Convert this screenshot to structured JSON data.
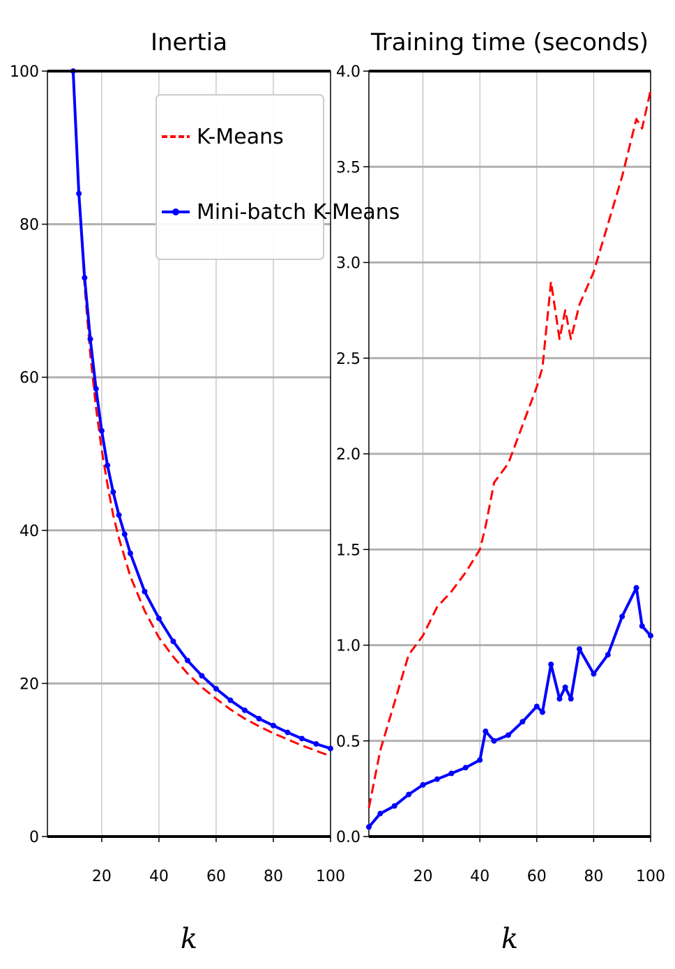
{
  "chart_data": [
    {
      "type": "line",
      "title": "Inertia",
      "xlabel": "k",
      "ylabel": "",
      "xlim": [
        1,
        100
      ],
      "ylim": [
        0,
        100
      ],
      "xticks": [
        20,
        40,
        60,
        80,
        100
      ],
      "yticks": [
        0,
        20,
        40,
        60,
        80,
        100
      ],
      "grid": true,
      "legend": {
        "location": "top-right",
        "entries": [
          "K-Means",
          "Mini-batch K-Means"
        ]
      },
      "x": [
        10,
        12,
        14,
        16,
        18,
        20,
        22,
        24,
        26,
        28,
        30,
        35,
        40,
        45,
        50,
        55,
        60,
        65,
        70,
        75,
        80,
        85,
        90,
        95,
        100
      ],
      "series": [
        {
          "name": "K-Means",
          "color": "#ff0000",
          "style": "dashed",
          "values": [
            100,
            84,
            72,
            63,
            56,
            50.5,
            46,
            42,
            39,
            36.5,
            34,
            29.5,
            26,
            23.5,
            21.3,
            19.5,
            18,
            16.6,
            15.4,
            14.4,
            13.5,
            12.7,
            11.9,
            11.2,
            10.5
          ]
        },
        {
          "name": "Mini-batch K-Means",
          "color": "#0000ff",
          "style": "solid",
          "values": [
            100,
            84,
            73,
            65,
            58.5,
            53,
            48.5,
            45,
            42,
            39.5,
            37,
            32,
            28.5,
            25.5,
            23,
            21,
            19.3,
            17.8,
            16.5,
            15.4,
            14.5,
            13.6,
            12.8,
            12.1,
            11.5
          ]
        }
      ]
    },
    {
      "type": "line",
      "title": "Training time (seconds)",
      "xlabel": "k",
      "ylabel": "",
      "xlim": [
        1,
        100
      ],
      "ylim": [
        0,
        4
      ],
      "xticks": [
        20,
        40,
        60,
        80,
        100
      ],
      "yticks": [
        0.0,
        0.5,
        1.0,
        1.5,
        2.0,
        2.5,
        3.0,
        3.5,
        4.0
      ],
      "grid": true,
      "x": [
        1,
        5,
        10,
        15,
        20,
        25,
        30,
        35,
        40,
        42,
        45,
        50,
        55,
        60,
        62,
        65,
        68,
        70,
        72,
        75,
        80,
        85,
        90,
        95,
        97,
        100
      ],
      "series": [
        {
          "name": "K-Means",
          "color": "#ff0000",
          "style": "dashed",
          "values": [
            0.15,
            0.45,
            0.7,
            0.95,
            1.05,
            1.2,
            1.28,
            1.38,
            1.5,
            1.62,
            1.85,
            1.95,
            2.15,
            2.35,
            2.45,
            2.9,
            2.6,
            2.75,
            2.6,
            2.78,
            2.95,
            3.2,
            3.45,
            3.75,
            3.7,
            3.9
          ]
        },
        {
          "name": "Mini-batch K-Means",
          "color": "#0000ff",
          "style": "solid",
          "values": [
            0.05,
            0.12,
            0.16,
            0.22,
            0.27,
            0.3,
            0.33,
            0.36,
            0.4,
            0.55,
            0.5,
            0.53,
            0.6,
            0.68,
            0.65,
            0.9,
            0.72,
            0.78,
            0.72,
            0.98,
            0.85,
            0.95,
            1.15,
            1.3,
            1.1,
            1.05
          ]
        }
      ]
    }
  ]
}
